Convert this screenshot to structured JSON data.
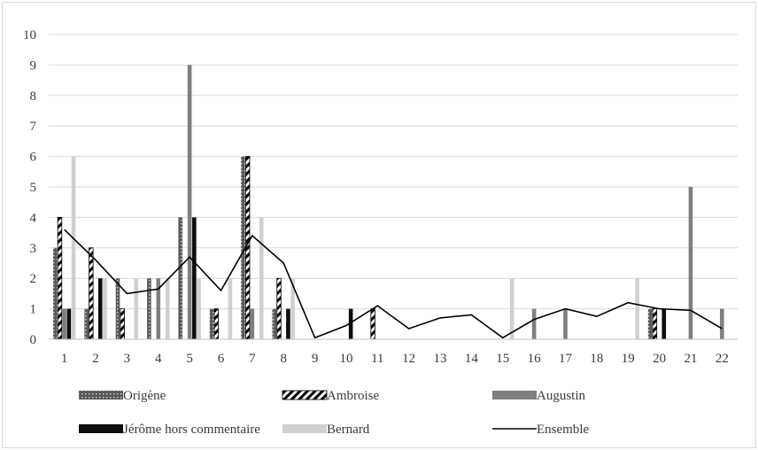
{
  "chart_data": {
    "type": "bar",
    "title": "",
    "xlabel": "",
    "ylabel": "",
    "ylim": [
      0,
      10
    ],
    "yticks": [
      0,
      1,
      2,
      3,
      4,
      5,
      6,
      7,
      8,
      9,
      10
    ],
    "grid": true,
    "legend": "bottom",
    "categories": [
      "1",
      "2",
      "3",
      "4",
      "5",
      "6",
      "7",
      "8",
      "9",
      "10",
      "11",
      "12",
      "13",
      "14",
      "15",
      "16",
      "17",
      "18",
      "19",
      "20",
      "21",
      "22"
    ],
    "series": [
      {
        "name": "Origène",
        "type": "bar",
        "color": "#595959",
        "pattern": "dots",
        "values": [
          3,
          1,
          2,
          2,
          4,
          1,
          6,
          1,
          0,
          0,
          0,
          0,
          0,
          0,
          0,
          0,
          0,
          0,
          0,
          1,
          0,
          0
        ]
      },
      {
        "name": "Ambroise",
        "type": "bar",
        "color": "#000000",
        "pattern": "diagonal",
        "values": [
          4,
          3,
          1,
          0,
          0,
          1,
          6,
          2,
          0,
          0,
          1,
          0,
          0,
          0,
          0,
          0,
          0,
          0,
          0,
          1,
          0,
          0
        ]
      },
      {
        "name": "Augustin",
        "type": "bar",
        "color": "#7f7f7f",
        "pattern": "solid",
        "values": [
          1,
          0,
          0,
          2,
          9,
          0,
          1,
          0,
          0,
          0,
          0,
          0,
          0,
          0,
          0,
          1,
          1,
          0,
          0,
          0,
          5,
          1
        ]
      },
      {
        "name": "Jérôme hors commentaire",
        "type": "bar",
        "color": "#0d0d0d",
        "pattern": "solid",
        "values": [
          1,
          2,
          0,
          0,
          4,
          0,
          0,
          1,
          0,
          1,
          0,
          0,
          0,
          0,
          0,
          0,
          0,
          0,
          0,
          1,
          0,
          0
        ]
      },
      {
        "name": "Bernard",
        "type": "bar",
        "color": "#d0d0d0",
        "pattern": "solid",
        "values": [
          6,
          2,
          2,
          2,
          2,
          2,
          4,
          2,
          0,
          0,
          0,
          0,
          0,
          0,
          2,
          0,
          0,
          0,
          2,
          0,
          0,
          0
        ]
      },
      {
        "name": "Ensemble",
        "type": "line",
        "color": "#000000",
        "values": [
          3.6,
          2.6,
          1.5,
          1.65,
          2.7,
          1.6,
          3.4,
          2.5,
          0.05,
          0.45,
          1.1,
          0.35,
          0.7,
          0.8,
          0.05,
          0.65,
          1.0,
          0.75,
          1.2,
          1.0,
          0.95,
          0.35
        ]
      }
    ]
  }
}
